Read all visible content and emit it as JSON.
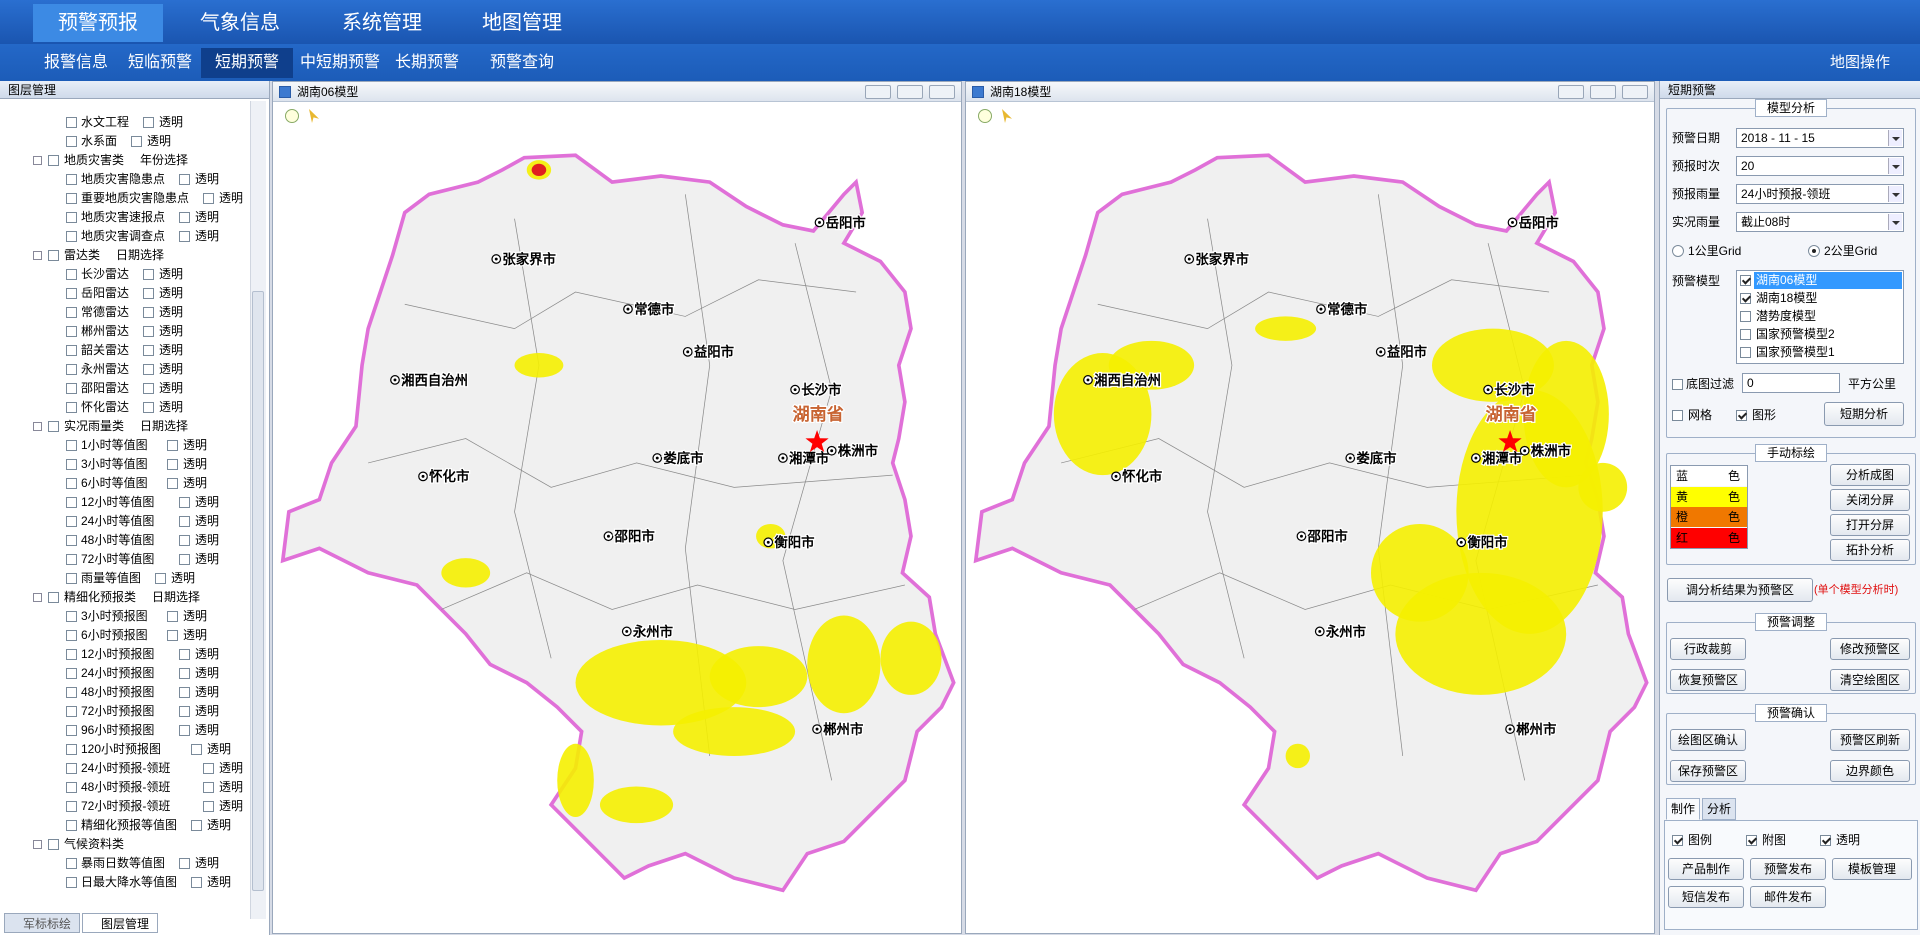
{
  "nav": {
    "tabs": [
      "预警预报",
      "气象信息",
      "系统管理",
      "地图管理"
    ],
    "active": 0
  },
  "subnav": {
    "tabs": [
      "报警信息",
      "短临预警",
      "短期预警",
      "中短期预警",
      "长期预警",
      "预警查询"
    ],
    "active": 2,
    "right": "地图操作"
  },
  "layers": {
    "title": "图层管理",
    "items": [
      {
        "label": "水文工程",
        "extra": "透明"
      },
      {
        "label": "水系面",
        "extra": "透明"
      },
      {
        "label": "地质灾害类",
        "extra": "年份选择",
        "group": true
      },
      {
        "label": "地质灾害隐患点",
        "extra": "透明"
      },
      {
        "label": "重要地质灾害隐患点",
        "extra": "透明"
      },
      {
        "label": "地质灾害速报点",
        "extra": "透明"
      },
      {
        "label": "地质灾害调查点",
        "extra": "透明"
      },
      {
        "label": "雷达类",
        "extra": "日期选择",
        "group": true
      },
      {
        "label": "长沙雷达",
        "extra": "透明"
      },
      {
        "label": "岳阳雷达",
        "extra": "透明"
      },
      {
        "label": "常德雷达",
        "extra": "透明"
      },
      {
        "label": "郴州雷达",
        "extra": "透明"
      },
      {
        "label": "韶关雷达",
        "extra": "透明"
      },
      {
        "label": "永州雷达",
        "extra": "透明"
      },
      {
        "label": "邵阳雷达",
        "extra": "透明"
      },
      {
        "label": "怀化雷达",
        "extra": "透明"
      },
      {
        "label": "实况雨量类",
        "extra": "日期选择",
        "group": true
      },
      {
        "label": "1小时等值图",
        "extra": "透明"
      },
      {
        "label": "3小时等值图",
        "extra": "透明"
      },
      {
        "label": "6小时等值图",
        "extra": "透明"
      },
      {
        "label": "12小时等值图",
        "extra": "透明"
      },
      {
        "label": "24小时等值图",
        "extra": "透明"
      },
      {
        "label": "48小时等值图",
        "extra": "透明"
      },
      {
        "label": "72小时等值图",
        "extra": "透明"
      },
      {
        "label": "雨量等值图",
        "extra": "透明"
      },
      {
        "label": "精细化预报类",
        "extra": "日期选择",
        "group": true
      },
      {
        "label": "3小时预报图",
        "extra": "透明"
      },
      {
        "label": "6小时预报图",
        "extra": "透明"
      },
      {
        "label": "12小时预报图",
        "extra": "透明"
      },
      {
        "label": "24小时预报图",
        "extra": "透明"
      },
      {
        "label": "48小时预报图",
        "extra": "透明"
      },
      {
        "label": "72小时预报图",
        "extra": "透明"
      },
      {
        "label": "96小时预报图",
        "extra": "透明"
      },
      {
        "label": "120小时预报图",
        "extra": "透明"
      },
      {
        "label": "24小时预报-领班",
        "extra": "透明"
      },
      {
        "label": "48小时预报-领班",
        "extra": "透明"
      },
      {
        "label": "72小时预报-领班",
        "extra": "透明"
      },
      {
        "label": "精细化预报等值图",
        "extra": "透明"
      },
      {
        "label": "气候资料类",
        "group": true
      },
      {
        "label": "暴雨日数等值图",
        "extra": "透明"
      },
      {
        "label": "日最大降水等值图",
        "extra": "透明"
      }
    ],
    "bottom_tabs": [
      "军标标绘",
      "图层管理"
    ],
    "active_tab": 1
  },
  "maps": [
    {
      "title": "湖南06模型"
    },
    {
      "title": "湖南18模型"
    }
  ],
  "map_labels": {
    "province": "湖南省",
    "cities": [
      "岳阳市",
      "张家界市",
      "常德市",
      "益阳市",
      "湘西自治州",
      "长沙市",
      "湘潭市",
      "株洲市",
      "娄底市",
      "怀化市",
      "邵阳市",
      "衡阳市",
      "永州市",
      "郴州市"
    ]
  },
  "panel": {
    "title": "短期预警",
    "model": {
      "title": "模型分析",
      "fields": [
        {
          "label": "预警日期",
          "value": "2018 - 11 - 15"
        },
        {
          "label": "预报时次",
          "value": "20"
        },
        {
          "label": "预报雨量",
          "value": "24小时预报-领班"
        },
        {
          "label": "实况雨量",
          "value": "截止08时"
        }
      ],
      "grid_options": [
        {
          "label": "1公里Grid",
          "checked": false
        },
        {
          "label": "2公里Grid",
          "checked": true
        }
      ],
      "models_label": "预警模型",
      "models": [
        {
          "label": "湖南06模型",
          "checked": true,
          "selected": true
        },
        {
          "label": "湖南18模型",
          "checked": true
        },
        {
          "label": "潜势度模型",
          "checked": false
        },
        {
          "label": "国家预警模型2",
          "checked": false
        },
        {
          "label": "国家预警模型1",
          "checked": false
        }
      ],
      "filter": {
        "label": "底图过滤",
        "value": "0",
        "unit": "平方公里",
        "checked": false
      },
      "toggles": [
        {
          "label": "网格",
          "checked": false
        },
        {
          "label": "图形",
          "checked": true
        }
      ],
      "button": "短期分析"
    },
    "manual": {
      "title": "手动标绘",
      "colors": [
        {
          "label": "蓝",
          "suffix": "色",
          "color": "#ffffff"
        },
        {
          "label": "黄",
          "suffix": "色",
          "color": "#ffff00"
        },
        {
          "label": "橙",
          "suffix": "色",
          "color": "#f07800"
        },
        {
          "label": "红",
          "suffix": "色",
          "color": "#ff0000"
        }
      ],
      "buttons": [
        "分析成图",
        "关闭分屏",
        "打开分屏",
        "拓扑分析"
      ]
    },
    "convert": {
      "button": "调分析结果为预警区",
      "note": "(单个模型分析时)"
    },
    "adjust": {
      "title": "预警调整",
      "buttons": [
        "行政裁剪",
        "修改预警区",
        "恢复预警区",
        "清空绘图区"
      ]
    },
    "confirm": {
      "title": "预警确认",
      "buttons": [
        "绘图区确认",
        "预警区刷新",
        "保存预警区",
        "边界颜色"
      ]
    },
    "output": {
      "tabs": [
        "制作",
        "分析"
      ],
      "active": 0,
      "checks": [
        {
          "label": "图例",
          "checked": true
        },
        {
          "label": "附图",
          "checked": true
        },
        {
          "label": "透明",
          "checked": true
        }
      ],
      "buttons": [
        "产品制作",
        "预警发布",
        "模板管理",
        "短信发布",
        "邮件发布"
      ]
    }
  }
}
